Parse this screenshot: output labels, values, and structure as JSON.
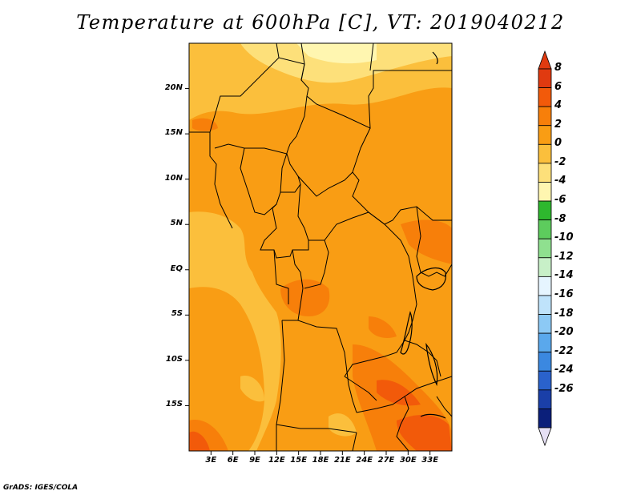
{
  "title": "Temperature at 600hPa [C], VT: 2019040212",
  "credit": "GrADS: IGES/COLA",
  "map": {
    "lon_range": [
      0,
      36
    ],
    "lat_range": [
      -20,
      25
    ],
    "lat_ticks": [
      {
        "value": 20,
        "label": "20N"
      },
      {
        "value": 15,
        "label": "15N"
      },
      {
        "value": 10,
        "label": "10N"
      },
      {
        "value": 5,
        "label": "5N"
      },
      {
        "value": 0,
        "label": "EQ"
      },
      {
        "value": -5,
        "label": "5S"
      },
      {
        "value": -10,
        "label": "10S"
      },
      {
        "value": -15,
        "label": "15S"
      }
    ],
    "lon_ticks": [
      {
        "value": 3,
        "label": "3E"
      },
      {
        "value": 6,
        "label": "6E"
      },
      {
        "value": 9,
        "label": "9E"
      },
      {
        "value": 12,
        "label": "12E"
      },
      {
        "value": 15,
        "label": "15E"
      },
      {
        "value": 18,
        "label": "18E"
      },
      {
        "value": 21,
        "label": "21E"
      },
      {
        "value": 24,
        "label": "24E"
      },
      {
        "value": 27,
        "label": "27E"
      },
      {
        "value": 30,
        "label": "30E"
      },
      {
        "value": 33,
        "label": "33E"
      }
    ]
  },
  "colorbar": {
    "levels": [
      "8",
      "6",
      "4",
      "2",
      "0",
      "-2",
      "-4",
      "-6",
      "-8",
      "-10",
      "-12",
      "-14",
      "-16",
      "-18",
      "-20",
      "-22",
      "-24",
      "-26"
    ],
    "colors": [
      "#e03a10",
      "#f25a0a",
      "#f77f0a",
      "#f99d14",
      "#fbbf3c",
      "#fde07a",
      "#fff6b0",
      "#2eb82e",
      "#5dcc5d",
      "#8fe08f",
      "#c8f0c8",
      "#e6f5ff",
      "#bfe3fb",
      "#8cc9f5",
      "#5aa8ec",
      "#3b88e0",
      "#2a62cc",
      "#1a3fa8",
      "#0b1f7a"
    ],
    "top_color": "#e03a10",
    "bottom_color": "#e6e0f5"
  }
}
